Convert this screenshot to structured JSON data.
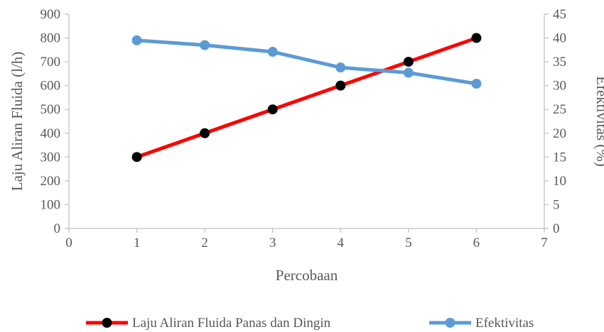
{
  "chart_data": {
    "type": "line",
    "xlabel": "Percobaan",
    "ylabel_left": "Laju Aliran Fluida (l/h)",
    "ylabel_right": "Efektivitas (%)",
    "xlim": [
      0,
      7
    ],
    "ylim_left": [
      0,
      900
    ],
    "ylim_right": [
      0,
      45
    ],
    "x_ticks": [
      "0",
      "1",
      "2",
      "3",
      "4",
      "5",
      "6",
      "7"
    ],
    "y_left_ticks": [
      "0",
      "100",
      "200",
      "300",
      "400",
      "500",
      "600",
      "700",
      "800",
      "900"
    ],
    "y_right_ticks": [
      "0",
      "5",
      "10",
      "15",
      "20",
      "25",
      "30",
      "35",
      "40",
      "45"
    ],
    "grid": false,
    "legend_position": "bottom",
    "series": [
      {
        "name": "Laju Aliran Fluida Panas dan Dingin",
        "axis": "left",
        "color": "#ff0000",
        "marker_color": "#000000",
        "x": [
          1,
          2,
          3,
          4,
          5,
          6
        ],
        "values": [
          300,
          400,
          500,
          600,
          700,
          800
        ]
      },
      {
        "name": "Efektivitas",
        "axis": "right",
        "color": "#5b9bd5",
        "marker_color": "#5b9bd5",
        "x": [
          1,
          2,
          3,
          4,
          5,
          6
        ],
        "values": [
          39.5,
          38.5,
          37.1,
          33.8,
          32.7,
          30.4
        ]
      }
    ]
  }
}
